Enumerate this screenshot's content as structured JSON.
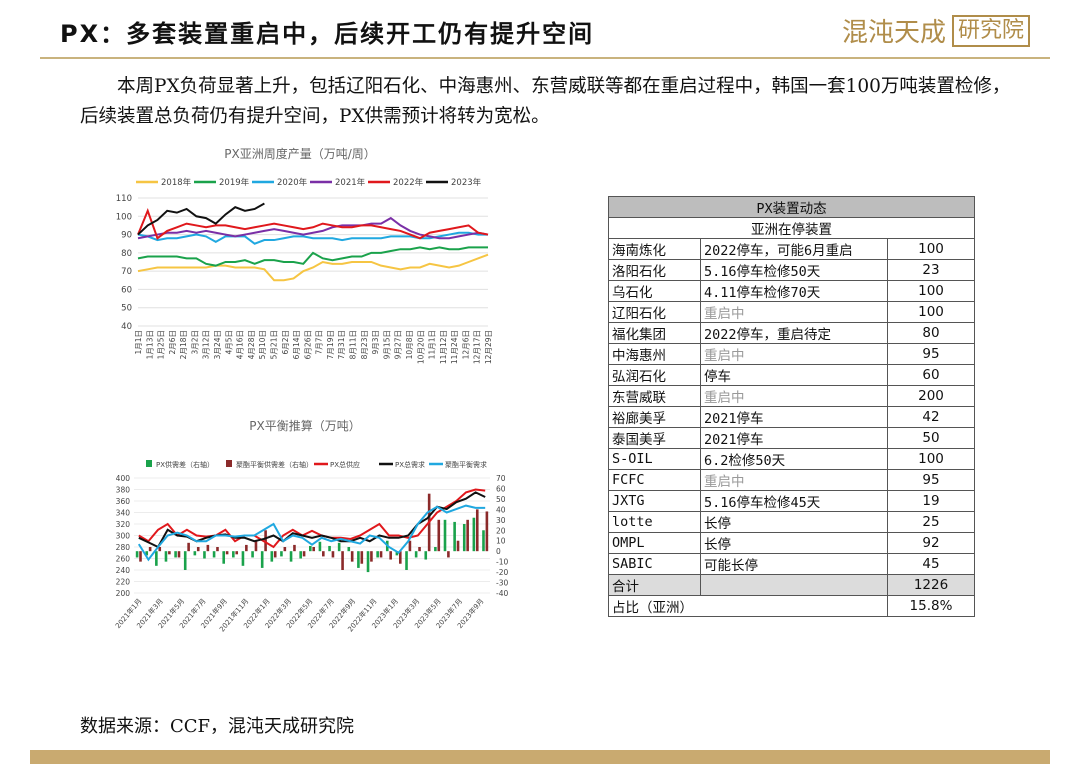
{
  "header": {
    "title": "PX：多套装置重启中，后续开工仍有提升空间",
    "logo_text": "混沌天成",
    "logo_box": "研究院"
  },
  "paragraph": "本周PX负荷显著上升，包括辽阳石化、中海惠州、东营威联等都在重启过程中，韩国一套100万吨装置检修，后续装置总负荷仍有提升空间，PX供需预计将转为宽松。",
  "source": "数据来源：CCF，混沌天成研究院",
  "colors": {
    "gold": "#c9aa70",
    "s2018": "#f6c543",
    "s2019": "#1aa24b",
    "s2020": "#20a8e0",
    "s2021": "#7a2fa6",
    "s2022": "#e0181c",
    "s2023": "#111111",
    "bar_green": "#1aa24b",
    "bar_brown": "#8b2a2a"
  },
  "chart_data": [
    {
      "type": "line",
      "title": "PX亚洲周度产量（万吨/周）",
      "ylim": [
        40,
        110
      ],
      "yticks": [
        40,
        50,
        60,
        70,
        80,
        90,
        100,
        110
      ],
      "x_labels": [
        "1月1日",
        "1月13日",
        "1月25日",
        "2月6日",
        "2月18日",
        "3月2日",
        "3月12日",
        "3月24日",
        "4月5日",
        "4月16日",
        "4月28日",
        "5月10日",
        "5月21日",
        "6月2日",
        "6月14日",
        "6月26日",
        "7月7日",
        "7月19日",
        "7月31日",
        "8月11日",
        "8月23日",
        "9月3日",
        "9月15日",
        "9月27日",
        "10月8日",
        "10月20日",
        "11月1日",
        "11月12日",
        "11月24日",
        "12月6日",
        "12月17日",
        "12月29日"
      ],
      "series": [
        {
          "name": "2018年",
          "values": [
            70,
            71,
            72,
            72,
            72,
            72,
            72,
            72,
            73,
            73,
            72,
            72,
            72,
            71,
            65,
            65,
            66,
            70,
            72,
            75,
            74,
            74,
            75,
            75,
            75,
            73,
            72,
            71,
            72,
            72,
            74,
            73,
            72,
            73,
            75,
            77,
            79
          ]
        },
        {
          "name": "2019年",
          "values": [
            77,
            78,
            78,
            78,
            78,
            77,
            77,
            74,
            73,
            75,
            75,
            76,
            74,
            76,
            76,
            75,
            75,
            74,
            80,
            77,
            76,
            77,
            78,
            78,
            80,
            80,
            81,
            82,
            82,
            83,
            82,
            83,
            82,
            82,
            83,
            83,
            83
          ]
        },
        {
          "name": "2020年",
          "values": [
            90,
            89,
            87,
            88,
            88,
            89,
            90,
            89,
            86,
            89,
            89,
            89,
            85,
            87,
            87,
            88,
            89,
            89,
            88,
            88,
            88,
            87,
            88,
            88,
            88,
            88,
            89,
            89,
            89,
            88,
            88,
            89,
            90,
            91,
            91,
            90,
            90
          ]
        },
        {
          "name": "2021年",
          "values": [
            88,
            89,
            90,
            91,
            91,
            92,
            91,
            92,
            91,
            90,
            89,
            90,
            91,
            92,
            93,
            92,
            91,
            90,
            91,
            92,
            94,
            95,
            95,
            95,
            96,
            96,
            99,
            95,
            92,
            90,
            89,
            88,
            88,
            89,
            90,
            91,
            90
          ]
        },
        {
          "name": "2022年",
          "values": [
            90,
            103,
            88,
            92,
            94,
            96,
            95,
            94,
            95,
            95,
            94,
            93,
            94,
            95,
            96,
            95,
            94,
            93,
            94,
            96,
            95,
            94,
            94,
            95,
            95,
            94,
            93,
            92,
            90,
            88,
            91,
            92,
            93,
            94,
            95,
            91,
            90
          ]
        },
        {
          "name": "2023年",
          "values": [
            90,
            95,
            98,
            103,
            102,
            104,
            100,
            99,
            96,
            101,
            105,
            103,
            104,
            107
          ]
        }
      ]
    },
    {
      "type": "bar",
      "title": "PX平衡推算（万吨）",
      "ylim": [
        200,
        400
      ],
      "y2lim": [
        -40,
        70
      ],
      "yticks": [
        200,
        220,
        240,
        260,
        280,
        300,
        320,
        340,
        360,
        380,
        400
      ],
      "y2ticks": [
        -40,
        -30,
        -20,
        -10,
        0,
        10,
        20,
        30,
        40,
        50,
        60,
        70
      ],
      "x_labels": [
        "2021年1月",
        "2021年3月",
        "2021年5月",
        "2021年7月",
        "2021年9月",
        "2021年11月",
        "2022年1月",
        "2022年3月",
        "2022年5月",
        "2022年7月",
        "2022年9月",
        "2022年11月",
        "2023年1月",
        "2023年3月",
        "2023年5月",
        "2023年7月",
        "2023年9月"
      ],
      "series": [
        {
          "name": "PX供需差（右轴）",
          "values": [
            -6,
            -4,
            -14,
            -10,
            -6,
            -18,
            -4,
            -7,
            -6,
            -12,
            -6,
            -14,
            -6,
            -16,
            -10,
            -5,
            -10,
            -7,
            5,
            9,
            5,
            8,
            4,
            -16,
            -20,
            -6,
            10,
            -4,
            -18,
            -6,
            -8,
            4,
            30,
            28,
            26,
            32,
            20
          ]
        },
        {
          "name": "聚酯平衡供需差（右轴）",
          "values": [
            -10,
            4,
            4,
            -3,
            -6,
            8,
            4,
            6,
            4,
            -3,
            -3,
            6,
            10,
            20,
            -6,
            4,
            6,
            -5,
            4,
            -5,
            -6,
            -18,
            -10,
            -12,
            -10,
            -6,
            -8,
            -12,
            10,
            4,
            55,
            30,
            -6,
            10,
            30,
            40,
            38
          ]
        },
        {
          "name": "PX总供应",
          "values": [
            300,
            290,
            310,
            320,
            300,
            310,
            300,
            298,
            300,
            310,
            290,
            300,
            300,
            290,
            280,
            300,
            310,
            300,
            308,
            300,
            296,
            296,
            294,
            300,
            310,
            320,
            300,
            300,
            296,
            300,
            320,
            340,
            350,
            360,
            375,
            380,
            378
          ]
        },
        {
          "name": "PX总需求",
          "values": [
            296,
            288,
            280,
            310,
            300,
            298,
            290,
            296,
            300,
            302,
            296,
            296,
            290,
            294,
            300,
            290,
            304,
            300,
            296,
            300,
            296,
            290,
            290,
            296,
            290,
            300,
            296,
            296,
            300,
            320,
            330,
            350,
            346,
            358,
            364,
            375,
            367
          ]
        },
        {
          "name": "聚酯平衡需求",
          "values": [
            285,
            258,
            280,
            300,
            305,
            300,
            290,
            290,
            300,
            300,
            298,
            300,
            300,
            310,
            320,
            290,
            300,
            296,
            284,
            296,
            290,
            294,
            290,
            286,
            300,
            296,
            280,
            270,
            290,
            320,
            340,
            350,
            340,
            346,
            352,
            348,
            348
          ]
        }
      ]
    }
  ],
  "table": {
    "header": "PX装置动态",
    "subheader": "亚洲在停装置",
    "rows": [
      {
        "name": "海南炼化",
        "status": "2022停车，可能6月重启",
        "cap": "100",
        "grey": false
      },
      {
        "name": "洛阳石化",
        "status": "5.16停车检修50天",
        "cap": "23",
        "grey": false
      },
      {
        "name": "乌石化",
        "status": "4.11停车检修70天",
        "cap": "100",
        "grey": false
      },
      {
        "name": "辽阳石化",
        "status": "重启中",
        "cap": "100",
        "grey": true
      },
      {
        "name": "福化集团",
        "status": "2022停车，重启待定",
        "cap": "80",
        "grey": false
      },
      {
        "name": "中海惠州",
        "status": "重启中",
        "cap": "95",
        "grey": true
      },
      {
        "name": "弘润石化",
        "status": "停车",
        "cap": "60",
        "grey": false
      },
      {
        "name": "东营威联",
        "status": "重启中",
        "cap": "200",
        "grey": true
      },
      {
        "name": "裕廊美孚",
        "status": "2021停车",
        "cap": "42",
        "grey": false
      },
      {
        "name": "泰国美孚",
        "status": "2021停车",
        "cap": "50",
        "grey": false
      },
      {
        "name": "S-OIL",
        "status": "6.2检修50天",
        "cap": "100",
        "grey": false
      },
      {
        "name": "FCFC",
        "status": "重启中",
        "cap": "95",
        "grey": true
      },
      {
        "name": "JXTG",
        "status": "5.16停车检修45天",
        "cap": "19",
        "grey": false
      },
      {
        "name": "lotte",
        "status": "长停",
        "cap": "25",
        "grey": false
      },
      {
        "name": "OMPL",
        "status": "长停",
        "cap": "92",
        "grey": false
      },
      {
        "name": "SABIC",
        "status": "可能长停",
        "cap": "45",
        "grey": false
      }
    ],
    "total_label": "合计",
    "total": "1226",
    "ratio_label": "占比（亚洲）",
    "ratio": "15.8%"
  }
}
